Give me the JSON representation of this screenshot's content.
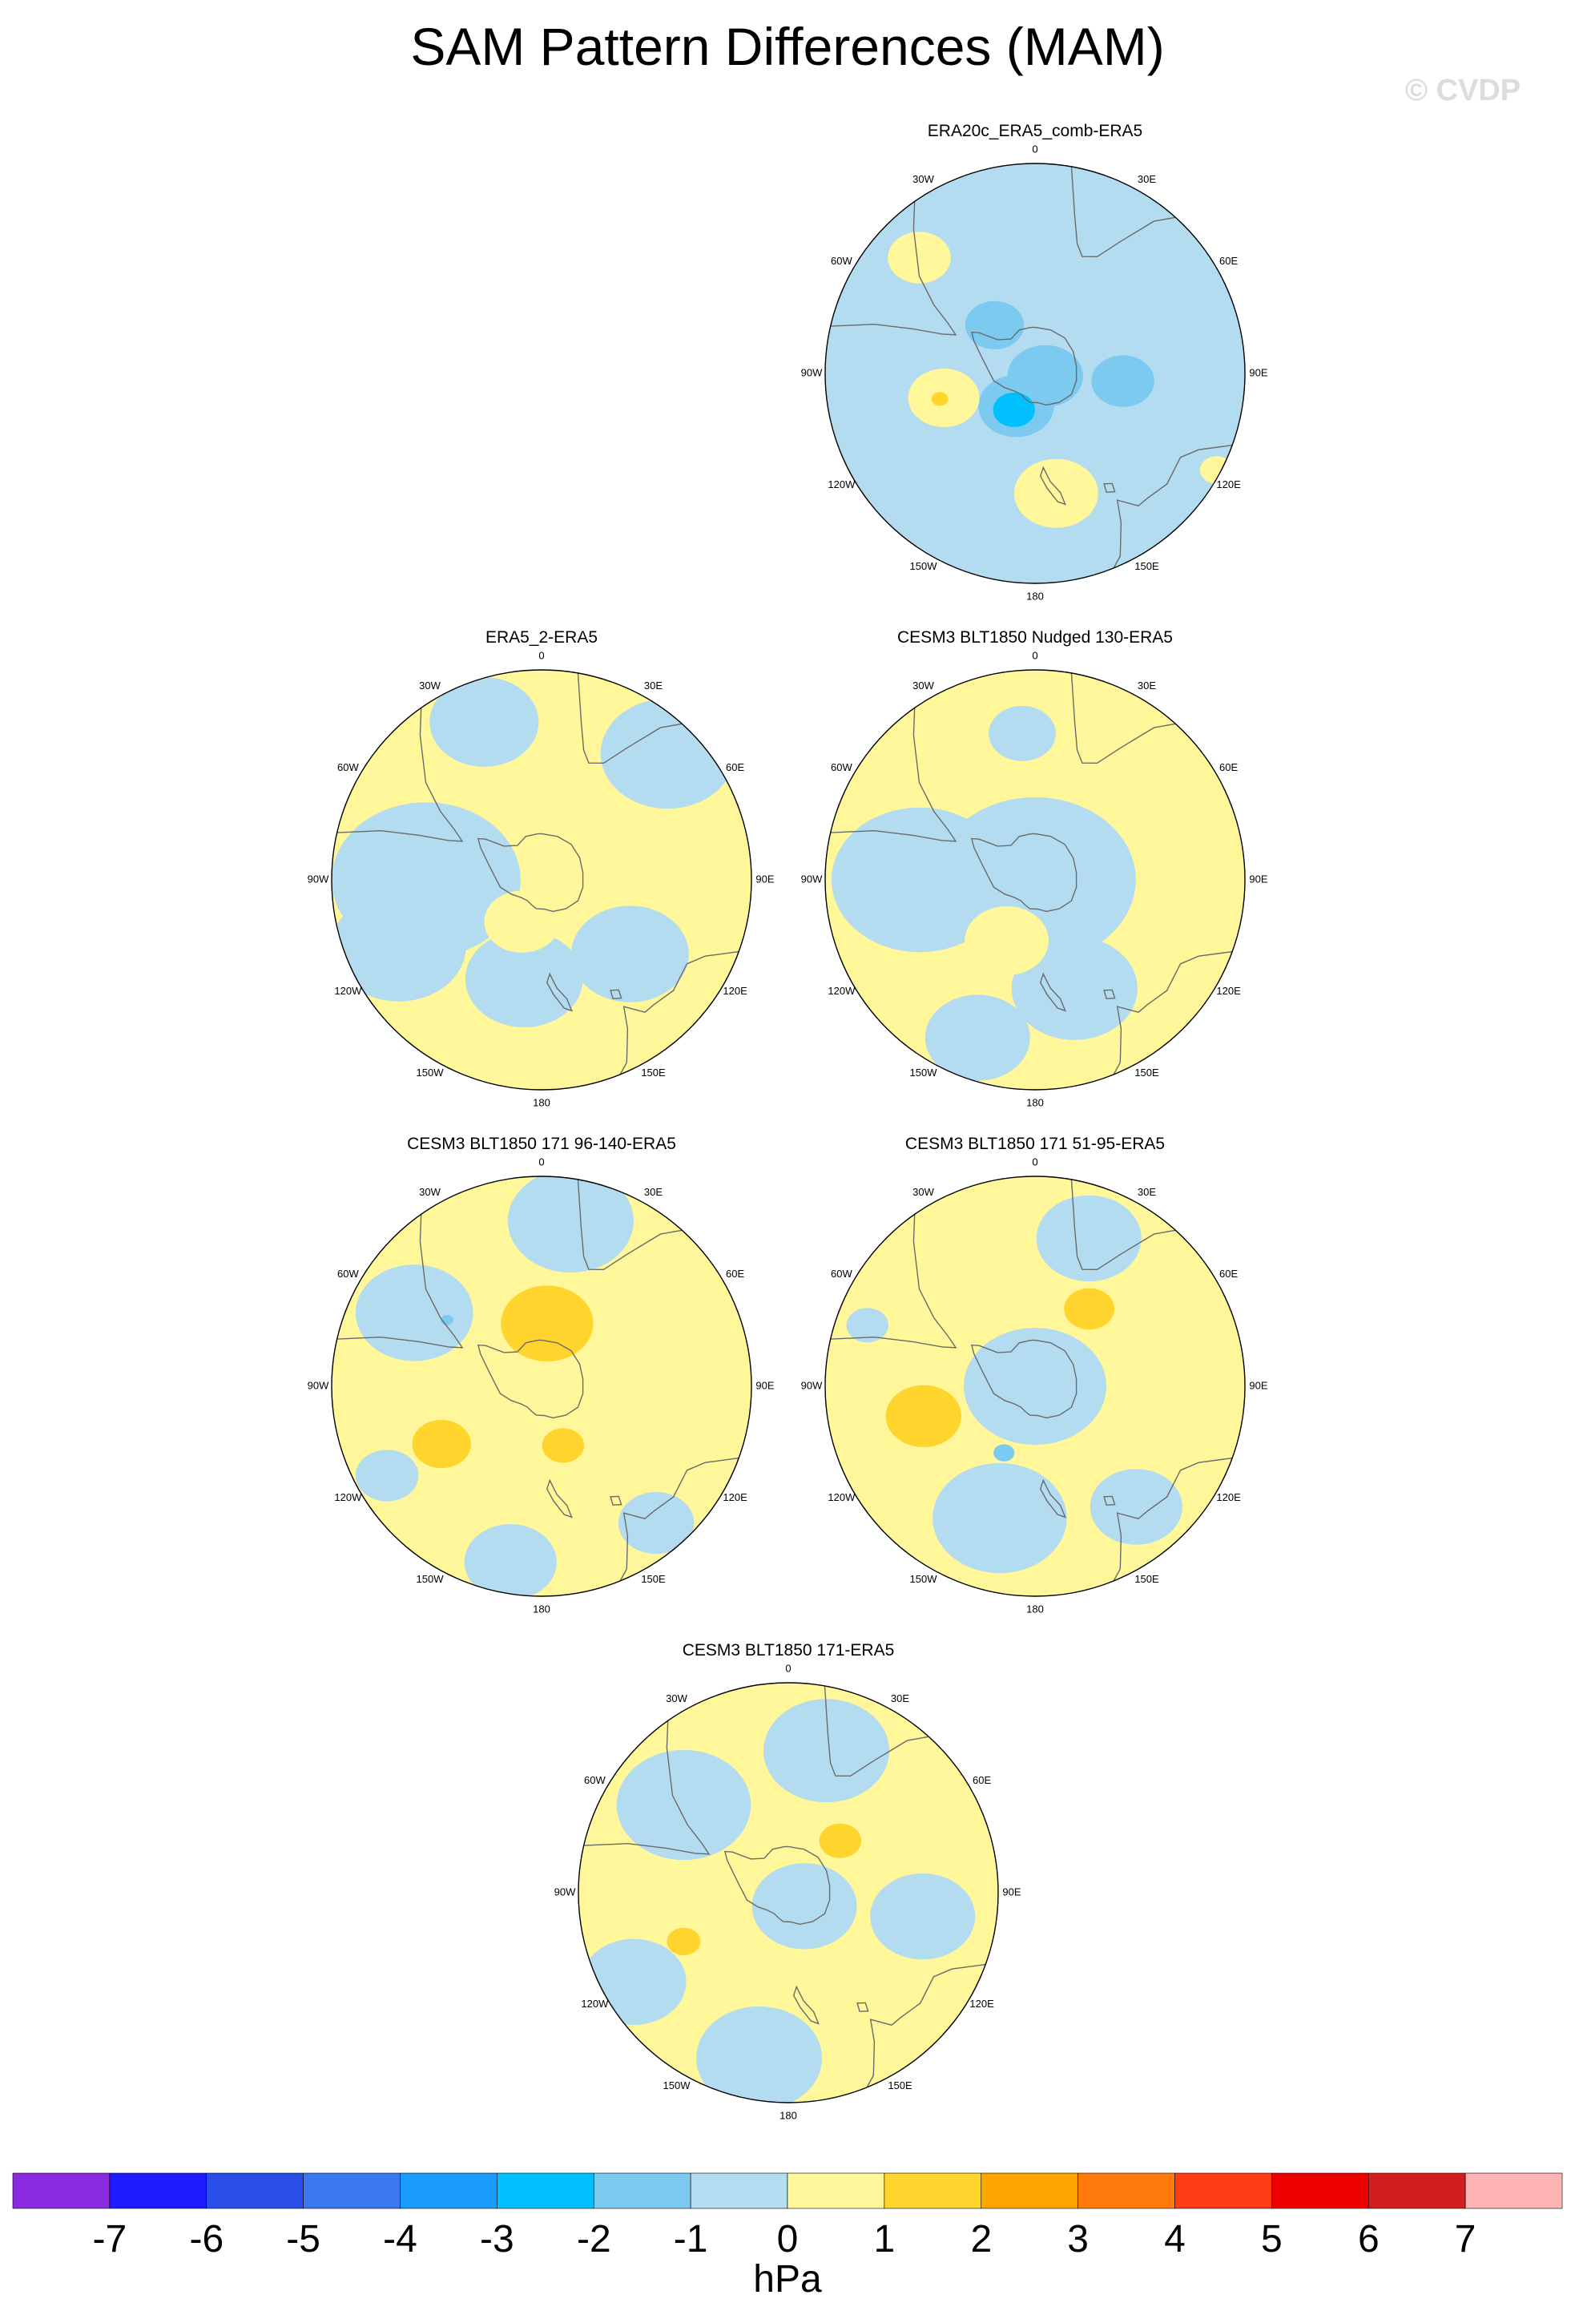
{
  "figure": {
    "title": "SAM Pattern Differences (MAM)",
    "watermark": "© CVDP"
  },
  "lon_labels": [
    "0",
    "30E",
    "60E",
    "90E",
    "120E",
    "150E",
    "180",
    "150W",
    "120W",
    "90W",
    "60W",
    "30W"
  ],
  "panels": [
    {
      "id": "p1",
      "title": "ERA20c_ERA5_comb-ERA5",
      "base_level": -1,
      "blobs": [
        {
          "lon": 315,
          "colat": 0.78,
          "r": 0.15,
          "level": 0
        },
        {
          "lon": 105,
          "colat": 0.05,
          "r": 0.18,
          "level": -2
        },
        {
          "lon": 95,
          "colat": 0.42,
          "r": 0.15,
          "level": -2
        },
        {
          "lon": 320,
          "colat": 0.3,
          "r": 0.14,
          "level": -2
        },
        {
          "lon": 210,
          "colat": 0.18,
          "r": 0.18,
          "level": -2
        },
        {
          "lon": 210,
          "colat": 0.2,
          "r": 0.1,
          "level": -3
        },
        {
          "lon": 255,
          "colat": 0.45,
          "r": 0.17,
          "level": 0
        },
        {
          "lon": 255,
          "colat": 0.47,
          "r": 0.04,
          "level": 1
        },
        {
          "lon": 170,
          "colat": 0.58,
          "r": 0.2,
          "level": 0
        },
        {
          "lon": 118,
          "colat": 0.98,
          "r": 0.08,
          "level": 0
        }
      ]
    },
    {
      "id": "p2",
      "title": "ERA5_2-ERA5",
      "base_level": 0,
      "blobs": [
        {
          "lon": 340,
          "colat": 0.8,
          "r": 0.26,
          "level": -1
        },
        {
          "lon": 45,
          "colat": 0.85,
          "r": 0.32,
          "level": -1
        },
        {
          "lon": 270,
          "colat": 0.55,
          "r": 0.45,
          "level": -1
        },
        {
          "lon": 190,
          "colat": 0.48,
          "r": 0.28,
          "level": -1
        },
        {
          "lon": 245,
          "colat": 0.75,
          "r": 0.32,
          "level": -1
        },
        {
          "lon": 130,
          "colat": 0.55,
          "r": 0.28,
          "level": -1
        },
        {
          "lon": 205,
          "colat": 0.22,
          "r": 0.18,
          "level": 0
        }
      ]
    },
    {
      "id": "p3",
      "title": "CESM3 BLT1850 Nudged 130-ERA5",
      "base_level": 0,
      "blobs": [
        {
          "lon": 355,
          "colat": 0.7,
          "r": 0.16,
          "level": -1
        },
        {
          "lon": 0,
          "colat": 0.0,
          "r": 0.48,
          "level": -1
        },
        {
          "lon": 270,
          "colat": 0.55,
          "r": 0.42,
          "level": -1
        },
        {
          "lon": 160,
          "colat": 0.55,
          "r": 0.3,
          "level": -1
        },
        {
          "lon": 200,
          "colat": 0.8,
          "r": 0.25,
          "level": -1
        },
        {
          "lon": 205,
          "colat": 0.32,
          "r": 0.2,
          "level": 0
        }
      ]
    },
    {
      "id": "p4",
      "title": "CESM3 BLT1850 171 96-140-ERA5",
      "base_level": 0,
      "blobs": [
        {
          "lon": 10,
          "colat": 0.8,
          "r": 0.3,
          "level": -1
        },
        {
          "lon": 300,
          "colat": 0.7,
          "r": 0.28,
          "level": -1
        },
        {
          "lon": 190,
          "colat": 0.85,
          "r": 0.22,
          "level": -1
        },
        {
          "lon": 140,
          "colat": 0.85,
          "r": 0.18,
          "level": -1
        },
        {
          "lon": 240,
          "colat": 0.85,
          "r": 0.15,
          "level": -1
        },
        {
          "lon": 5,
          "colat": 0.3,
          "r": 0.22,
          "level": 1
        },
        {
          "lon": 240,
          "colat": 0.55,
          "r": 0.14,
          "level": 1
        },
        {
          "lon": 160,
          "colat": 0.3,
          "r": 0.1,
          "level": 1
        },
        {
          "lon": 305,
          "colat": 0.55,
          "r": 0.03,
          "level": -2
        }
      ]
    },
    {
      "id": "p5",
      "title": "CESM3 BLT1850 171 51-95-ERA5",
      "base_level": 0,
      "blobs": [
        {
          "lon": 60,
          "colat": 0.0,
          "r": 0.34,
          "level": -1
        },
        {
          "lon": 20,
          "colat": 0.75,
          "r": 0.25,
          "level": -1
        },
        {
          "lon": 195,
          "colat": 0.65,
          "r": 0.32,
          "level": -1
        },
        {
          "lon": 140,
          "colat": 0.75,
          "r": 0.22,
          "level": -1
        },
        {
          "lon": 290,
          "colat": 0.85,
          "r": 0.1,
          "level": -1
        },
        {
          "lon": 35,
          "colat": 0.45,
          "r": 0.12,
          "level": 1
        },
        {
          "lon": 255,
          "colat": 0.55,
          "r": 0.18,
          "level": 1
        },
        {
          "lon": 205,
          "colat": 0.35,
          "r": 0.05,
          "level": -2
        }
      ]
    },
    {
      "id": "p6",
      "title": "CESM3 BLT1850 171-ERA5",
      "base_level": 0,
      "blobs": [
        {
          "lon": 15,
          "colat": 0.7,
          "r": 0.3,
          "level": -1
        },
        {
          "lon": 310,
          "colat": 0.65,
          "r": 0.32,
          "level": -1
        },
        {
          "lon": 100,
          "colat": 0.65,
          "r": 0.25,
          "level": -1
        },
        {
          "lon": 190,
          "colat": 0.8,
          "r": 0.3,
          "level": -1
        },
        {
          "lon": 240,
          "colat": 0.85,
          "r": 0.25,
          "level": -1
        },
        {
          "lon": 130,
          "colat": 0.1,
          "r": 0.25,
          "level": -1
        },
        {
          "lon": 45,
          "colat": 0.35,
          "r": 0.1,
          "level": 1
        },
        {
          "lon": 245,
          "colat": 0.55,
          "r": 0.08,
          "level": 1
        }
      ]
    }
  ],
  "colorbar": {
    "unit": "hPa",
    "labels": [
      "-7",
      "-6",
      "-5",
      "-4",
      "-3",
      "-2",
      "-1",
      "0",
      "1",
      "2",
      "3",
      "4",
      "5",
      "6",
      "7"
    ],
    "colors": [
      "#8a2be2",
      "#1c1cff",
      "#2a4ee8",
      "#3a78f0",
      "#1a9cff",
      "#00c0ff",
      "#7ccaf0",
      "#b4dcf0",
      "#fff799",
      "#ffd52d",
      "#ffa500",
      "#ff7a0a",
      "#ff3c14",
      "#ee0000",
      "#d21e1e",
      "#ffb4b4"
    ]
  },
  "level_colors": {
    "-3": "#00c0ff",
    "-2": "#7ccaf0",
    "-1": "#b4dcf0",
    "0": "#fff799",
    "1": "#ffd52d"
  }
}
